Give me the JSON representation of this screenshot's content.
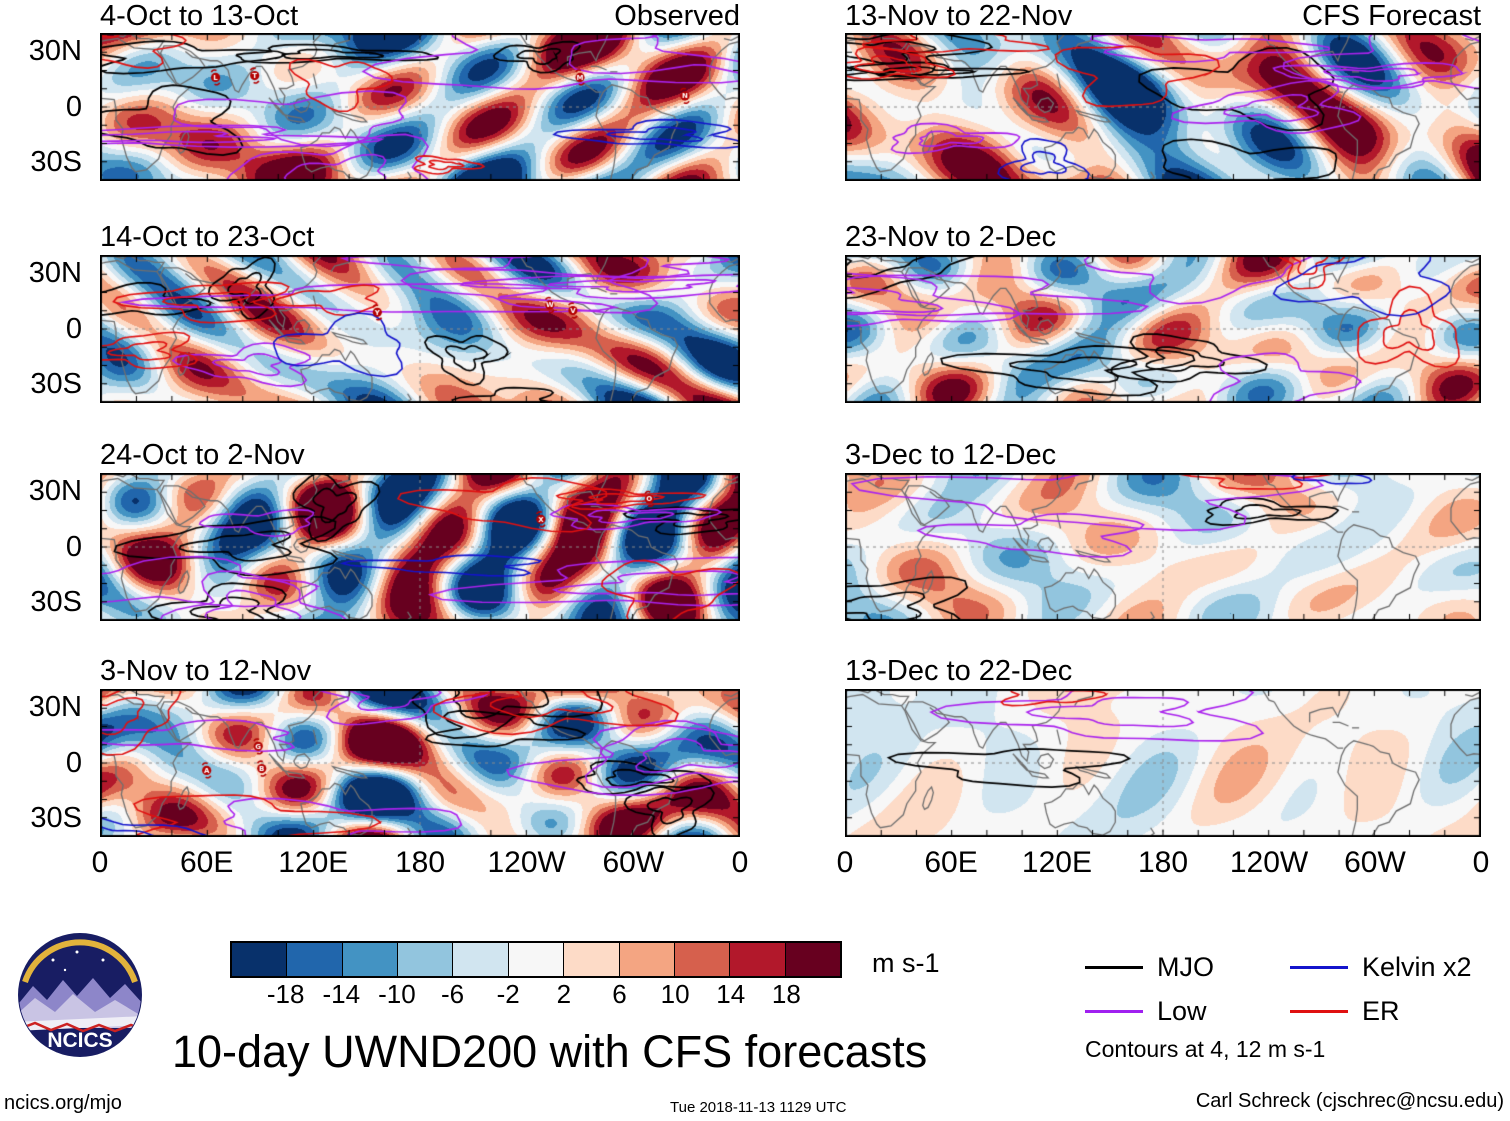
{
  "chart_data": {
    "type": "heatmap",
    "title": "10-day UWND200 with CFS forecasts",
    "lat_ticks": [
      "30N",
      "0",
      "30S"
    ],
    "lon_ticks": [
      "0",
      "60E",
      "120E",
      "180",
      "120W",
      "60W",
      "0"
    ],
    "lat_range": [
      40,
      -40
    ],
    "lon_range": [
      0,
      360
    ],
    "colorbar": {
      "levels": [
        -18,
        -14,
        -10,
        -6,
        -2,
        2,
        6,
        10,
        14,
        18
      ],
      "colors": [
        "#08316b",
        "#2166ac",
        "#4393c3",
        "#92c5de",
        "#d1e5f0",
        "#f7f7f7",
        "#fddbc7",
        "#f4a582",
        "#d6604d",
        "#b2182b",
        "#67001f"
      ],
      "units": "m s-1"
    },
    "legend": {
      "items": [
        {
          "label": "MJO",
          "color": "#000000"
        },
        {
          "label": "Kelvin x2",
          "color": "#1414cc"
        },
        {
          "label": "Low",
          "color": "#a020f0"
        },
        {
          "label": "ER",
          "color": "#e01010"
        }
      ],
      "note": "Contours at 4, 12 m s-1"
    },
    "columns": [
      {
        "name": "Observed",
        "panels": [
          {
            "label": "4-Oct to 13-Oct",
            "tag": "Observed",
            "seed": 11,
            "amplitude": 1.0,
            "storms": [
              {
                "lon": 65,
                "lat": 16,
                "letter": "L"
              },
              {
                "lon": 87,
                "lat": 17,
                "letter": "T"
              },
              {
                "lon": 270,
                "lat": 16,
                "letter": "M"
              },
              {
                "lon": 329,
                "lat": 6,
                "letter": "N"
              }
            ]
          },
          {
            "label": "14-Oct to 23-Oct",
            "seed": 23,
            "amplitude": 1.0,
            "storms": [
              {
                "lon": 156,
                "lat": 9,
                "letter": "Y"
              },
              {
                "lon": 253,
                "lat": 13,
                "letter": "W"
              },
              {
                "lon": 266,
                "lat": 10,
                "letter": "V"
              }
            ]
          },
          {
            "label": "24-Oct to 2-Nov",
            "seed": 37,
            "amplitude": 1.0,
            "storms": [
              {
                "lon": 248,
                "lat": 15,
                "letter": "X"
              },
              {
                "lon": 309,
                "lat": 26,
                "letter": "O"
              }
            ]
          },
          {
            "label": "3-Nov to 12-Nov",
            "seed": 49,
            "amplitude": 1.0,
            "storms": [
              {
                "lon": 89,
                "lat": 9,
                "letter": "G"
              },
              {
                "lon": 60,
                "lat": -4,
                "letter": "A"
              },
              {
                "lon": 91,
                "lat": -3,
                "letter": "B"
              }
            ]
          }
        ]
      },
      {
        "name": "CFS Forecast",
        "panels": [
          {
            "label": "13-Nov to 22-Nov",
            "tag": "CFS Forecast",
            "seed": 61,
            "amplitude": 0.95,
            "storms": []
          },
          {
            "label": "23-Nov to 2-Dec",
            "seed": 73,
            "amplitude": 0.7,
            "storms": []
          },
          {
            "label": "3-Dec to 12-Dec",
            "seed": 85,
            "amplitude": 0.45,
            "storms": []
          },
          {
            "label": "13-Dec to 22-Dec",
            "seed": 97,
            "amplitude": 0.28,
            "storms": []
          }
        ]
      }
    ]
  },
  "logo": {
    "text": "NCICS"
  },
  "footer": {
    "link": "ncics.org/mjo",
    "timestamp": "Tue 2018-11-13 1129 UTC",
    "credit": "Carl Schreck (cjschrec@ncsu.edu)"
  }
}
